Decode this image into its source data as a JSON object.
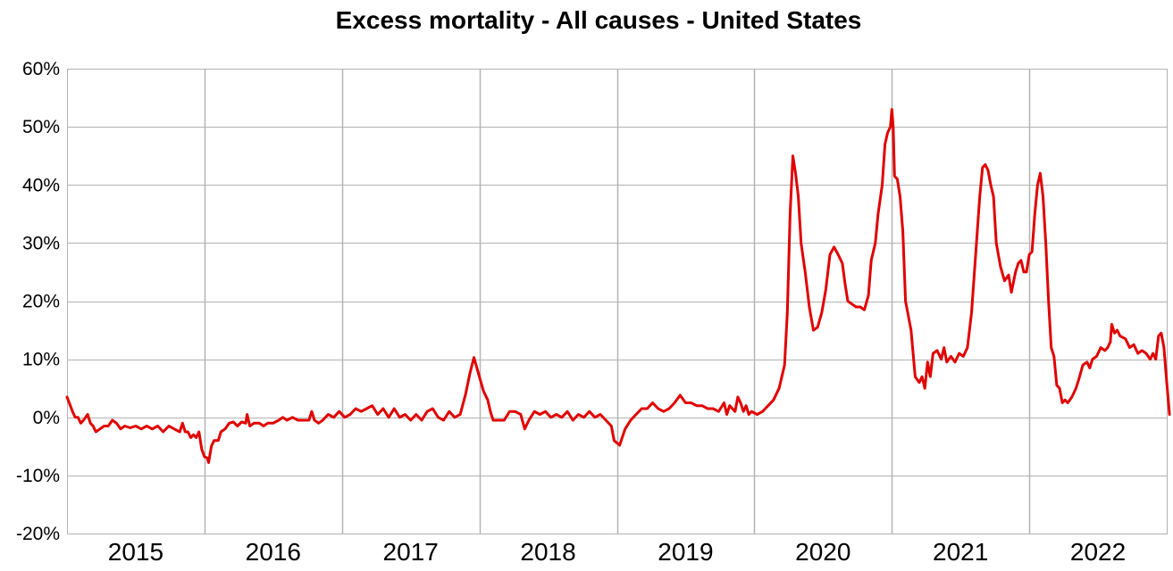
{
  "chart_data": {
    "type": "line",
    "title": "Excess mortality - All causes - United States",
    "xlabel": "",
    "ylabel": "",
    "ylim": [
      -20,
      60
    ],
    "yticks": [
      60,
      50,
      40,
      30,
      20,
      10,
      0,
      -10,
      -20
    ],
    "ytick_labels": [
      "60%",
      "50%",
      "40%",
      "30%",
      "20%",
      "10%",
      "0%",
      "-10%",
      "-20%"
    ],
    "xlim": [
      2015,
      2023
    ],
    "xtick_labels": [
      "2015",
      "2016",
      "2017",
      "2018",
      "2019",
      "2020",
      "2021",
      "2022"
    ],
    "grid": true,
    "line_color": "#e00000",
    "series": [
      {
        "values": [
          [
            2015.0,
            3.5
          ],
          [
            2015.04,
            1.0
          ],
          [
            2015.06,
            0.0
          ],
          [
            2015.08,
            0.0
          ],
          [
            2015.1,
            -1.0
          ],
          [
            2015.12,
            -0.5
          ],
          [
            2015.15,
            0.5
          ],
          [
            2015.17,
            -1.0
          ],
          [
            2015.19,
            -1.5
          ],
          [
            2015.21,
            -2.5
          ],
          [
            2015.24,
            -2.0
          ],
          [
            2015.27,
            -1.5
          ],
          [
            2015.3,
            -1.5
          ],
          [
            2015.33,
            -0.5
          ],
          [
            2015.36,
            -1.0
          ],
          [
            2015.39,
            -2.0
          ],
          [
            2015.42,
            -1.5
          ],
          [
            2015.46,
            -1.8
          ],
          [
            2015.5,
            -1.5
          ],
          [
            2015.54,
            -2.0
          ],
          [
            2015.58,
            -1.5
          ],
          [
            2015.62,
            -2.0
          ],
          [
            2015.66,
            -1.5
          ],
          [
            2015.7,
            -2.5
          ],
          [
            2015.74,
            -1.5
          ],
          [
            2015.78,
            -2.0
          ],
          [
            2015.82,
            -2.5
          ],
          [
            2015.84,
            -1.0
          ],
          [
            2015.86,
            -2.5
          ],
          [
            2015.88,
            -2.5
          ],
          [
            2015.9,
            -3.5
          ],
          [
            2015.92,
            -3.0
          ],
          [
            2015.94,
            -3.5
          ],
          [
            2015.96,
            -2.5
          ],
          [
            2015.98,
            -5.5
          ],
          [
            2016.0,
            -6.8
          ],
          [
            2016.02,
            -7.0
          ],
          [
            2016.03,
            -7.8
          ],
          [
            2016.05,
            -5.0
          ],
          [
            2016.07,
            -4.0
          ],
          [
            2016.1,
            -4.0
          ],
          [
            2016.12,
            -2.5
          ],
          [
            2016.15,
            -2.0
          ],
          [
            2016.18,
            -1.0
          ],
          [
            2016.21,
            -0.8
          ],
          [
            2016.24,
            -1.5
          ],
          [
            2016.27,
            -0.8
          ],
          [
            2016.3,
            -1.0
          ],
          [
            2016.31,
            0.5
          ],
          [
            2016.33,
            -1.5
          ],
          [
            2016.36,
            -1.0
          ],
          [
            2016.4,
            -1.0
          ],
          [
            2016.43,
            -1.5
          ],
          [
            2016.46,
            -1.0
          ],
          [
            2016.5,
            -1.0
          ],
          [
            2016.54,
            -0.5
          ],
          [
            2016.57,
            0.0
          ],
          [
            2016.6,
            -0.5
          ],
          [
            2016.64,
            0.0
          ],
          [
            2016.68,
            -0.5
          ],
          [
            2016.72,
            -0.5
          ],
          [
            2016.76,
            -0.5
          ],
          [
            2016.78,
            1.0
          ],
          [
            2016.8,
            -0.5
          ],
          [
            2016.83,
            -1.0
          ],
          [
            2016.86,
            -0.5
          ],
          [
            2016.9,
            0.5
          ],
          [
            2016.94,
            0.0
          ],
          [
            2016.98,
            1.0
          ],
          [
            2017.02,
            0.0
          ],
          [
            2017.06,
            0.5
          ],
          [
            2017.1,
            1.5
          ],
          [
            2017.14,
            1.0
          ],
          [
            2017.18,
            1.5
          ],
          [
            2017.22,
            2.0
          ],
          [
            2017.26,
            0.5
          ],
          [
            2017.3,
            1.5
          ],
          [
            2017.34,
            0.0
          ],
          [
            2017.38,
            1.5
          ],
          [
            2017.42,
            0.0
          ],
          [
            2017.46,
            0.5
          ],
          [
            2017.5,
            -0.5
          ],
          [
            2017.54,
            0.5
          ],
          [
            2017.58,
            -0.5
          ],
          [
            2017.62,
            1.0
          ],
          [
            2017.66,
            1.5
          ],
          [
            2017.7,
            0.0
          ],
          [
            2017.74,
            -0.5
          ],
          [
            2017.78,
            1.0
          ],
          [
            2017.82,
            0.0
          ],
          [
            2017.86,
            0.5
          ],
          [
            2017.9,
            4.0
          ],
          [
            2017.93,
            7.5
          ],
          [
            2017.96,
            10.3
          ],
          [
            2018.0,
            7.0
          ],
          [
            2018.03,
            4.5
          ],
          [
            2018.06,
            3.0
          ],
          [
            2018.08,
            1.0
          ],
          [
            2018.1,
            -0.5
          ],
          [
            2018.14,
            -0.5
          ],
          [
            2018.18,
            -0.5
          ],
          [
            2018.22,
            1.0
          ],
          [
            2018.26,
            1.0
          ],
          [
            2018.3,
            0.5
          ],
          [
            2018.33,
            -2.0
          ],
          [
            2018.36,
            -0.5
          ],
          [
            2018.4,
            1.0
          ],
          [
            2018.44,
            0.5
          ],
          [
            2018.48,
            1.0
          ],
          [
            2018.52,
            0.0
          ],
          [
            2018.56,
            0.5
          ],
          [
            2018.6,
            0.0
          ],
          [
            2018.64,
            1.0
          ],
          [
            2018.68,
            -0.5
          ],
          [
            2018.72,
            0.5
          ],
          [
            2018.76,
            0.0
          ],
          [
            2018.8,
            1.0
          ],
          [
            2018.84,
            0.0
          ],
          [
            2018.88,
            0.5
          ],
          [
            2018.92,
            -0.5
          ],
          [
            2018.96,
            -1.5
          ],
          [
            2018.98,
            -4.0
          ],
          [
            2019.02,
            -4.8
          ],
          [
            2019.06,
            -2.0
          ],
          [
            2019.1,
            -0.5
          ],
          [
            2019.14,
            0.5
          ],
          [
            2019.18,
            1.5
          ],
          [
            2019.22,
            1.5
          ],
          [
            2019.26,
            2.5
          ],
          [
            2019.3,
            1.5
          ],
          [
            2019.34,
            1.0
          ],
          [
            2019.38,
            1.5
          ],
          [
            2019.42,
            2.5
          ],
          [
            2019.46,
            3.8
          ],
          [
            2019.5,
            2.5
          ],
          [
            2019.54,
            2.5
          ],
          [
            2019.58,
            2.0
          ],
          [
            2019.62,
            2.0
          ],
          [
            2019.66,
            1.5
          ],
          [
            2019.7,
            1.5
          ],
          [
            2019.74,
            1.0
          ],
          [
            2019.78,
            2.5
          ],
          [
            2019.8,
            0.5
          ],
          [
            2019.82,
            2.0
          ],
          [
            2019.86,
            1.0
          ],
          [
            2019.88,
            3.5
          ],
          [
            2019.9,
            2.5
          ],
          [
            2019.92,
            1.0
          ],
          [
            2019.94,
            2.0
          ],
          [
            2019.96,
            0.5
          ],
          [
            2019.98,
            1.0
          ],
          [
            2020.02,
            0.5
          ],
          [
            2020.06,
            1.0
          ],
          [
            2020.1,
            2.0
          ],
          [
            2020.14,
            3.0
          ],
          [
            2020.18,
            5.0
          ],
          [
            2020.22,
            9.0
          ],
          [
            2020.24,
            18.0
          ],
          [
            2020.26,
            35.0
          ],
          [
            2020.28,
            45.0
          ],
          [
            2020.3,
            42.0
          ],
          [
            2020.32,
            38.0
          ],
          [
            2020.34,
            30.0
          ],
          [
            2020.37,
            25.0
          ],
          [
            2020.4,
            19.0
          ],
          [
            2020.43,
            15.0
          ],
          [
            2020.46,
            15.5
          ],
          [
            2020.49,
            18.0
          ],
          [
            2020.52,
            22.0
          ],
          [
            2020.55,
            28.0
          ],
          [
            2020.58,
            29.3
          ],
          [
            2020.61,
            28.0
          ],
          [
            2020.64,
            26.5
          ],
          [
            2020.66,
            23.0
          ],
          [
            2020.68,
            20.0
          ],
          [
            2020.71,
            19.5
          ],
          [
            2020.74,
            19.0
          ],
          [
            2020.77,
            19.0
          ],
          [
            2020.8,
            18.5
          ],
          [
            2020.83,
            21.0
          ],
          [
            2020.85,
            27.0
          ],
          [
            2020.88,
            30.0
          ],
          [
            2020.9,
            35.0
          ],
          [
            2020.93,
            40.0
          ],
          [
            2020.95,
            47.0
          ],
          [
            2020.97,
            49.0
          ],
          [
            2020.99,
            50.0
          ],
          [
            2021.0,
            53.0
          ],
          [
            2021.01,
            50.0
          ],
          [
            2021.02,
            41.5
          ],
          [
            2021.04,
            41.0
          ],
          [
            2021.06,
            38.0
          ],
          [
            2021.08,
            32.0
          ],
          [
            2021.1,
            20.0
          ],
          [
            2021.14,
            15.0
          ],
          [
            2021.17,
            7.0
          ],
          [
            2021.2,
            6.0
          ],
          [
            2021.22,
            7.0
          ],
          [
            2021.24,
            5.0
          ],
          [
            2021.26,
            9.5
          ],
          [
            2021.28,
            7.0
          ],
          [
            2021.3,
            11.0
          ],
          [
            2021.33,
            11.5
          ],
          [
            2021.36,
            10.0
          ],
          [
            2021.38,
            12.0
          ],
          [
            2021.4,
            9.5
          ],
          [
            2021.43,
            10.5
          ],
          [
            2021.46,
            9.5
          ],
          [
            2021.49,
            11.0
          ],
          [
            2021.52,
            10.5
          ],
          [
            2021.55,
            12.0
          ],
          [
            2021.58,
            18.0
          ],
          [
            2021.61,
            28.0
          ],
          [
            2021.64,
            38.0
          ],
          [
            2021.66,
            43.0
          ],
          [
            2021.68,
            43.5
          ],
          [
            2021.7,
            42.5
          ],
          [
            2021.72,
            40.0
          ],
          [
            2021.74,
            38.0
          ],
          [
            2021.76,
            30.0
          ],
          [
            2021.79,
            26.0
          ],
          [
            2021.82,
            23.5
          ],
          [
            2021.85,
            24.5
          ],
          [
            2021.87,
            21.5
          ],
          [
            2021.9,
            25.0
          ],
          [
            2021.92,
            26.5
          ],
          [
            2021.94,
            27.0
          ],
          [
            2021.96,
            25.0
          ],
          [
            2021.98,
            25.0
          ],
          [
            2022.0,
            28.0
          ],
          [
            2022.02,
            28.5
          ],
          [
            2022.04,
            35.0
          ],
          [
            2022.06,
            40.0
          ],
          [
            2022.08,
            42.0
          ],
          [
            2022.1,
            38.0
          ],
          [
            2022.12,
            30.0
          ],
          [
            2022.14,
            20.0
          ],
          [
            2022.16,
            12.0
          ],
          [
            2022.18,
            10.5
          ],
          [
            2022.2,
            5.5
          ],
          [
            2022.22,
            5.0
          ],
          [
            2022.24,
            2.5
          ],
          [
            2022.26,
            3.0
          ],
          [
            2022.28,
            2.5
          ],
          [
            2022.31,
            3.5
          ],
          [
            2022.34,
            5.0
          ],
          [
            2022.36,
            6.5
          ],
          [
            2022.39,
            9.0
          ],
          [
            2022.42,
            9.5
          ],
          [
            2022.44,
            8.5
          ],
          [
            2022.46,
            10.0
          ],
          [
            2022.49,
            10.5
          ],
          [
            2022.52,
            12.0
          ],
          [
            2022.55,
            11.5
          ],
          [
            2022.57,
            12.0
          ],
          [
            2022.59,
            13.0
          ],
          [
            2022.6,
            16.0
          ],
          [
            2022.62,
            14.5
          ],
          [
            2022.64,
            15.0
          ],
          [
            2022.66,
            14.0
          ],
          [
            2022.7,
            13.5
          ],
          [
            2022.73,
            12.0
          ],
          [
            2022.76,
            12.5
          ],
          [
            2022.79,
            11.0
          ],
          [
            2022.82,
            11.5
          ],
          [
            2022.85,
            11.0
          ],
          [
            2022.88,
            10.0
          ],
          [
            2022.9,
            11.0
          ],
          [
            2022.92,
            10.0
          ],
          [
            2022.94,
            14.0
          ],
          [
            2022.96,
            14.5
          ],
          [
            2022.98,
            12.0
          ],
          [
            2023.0,
            6.0
          ],
          [
            2023.02,
            0.5
          ]
        ]
      }
    ]
  }
}
